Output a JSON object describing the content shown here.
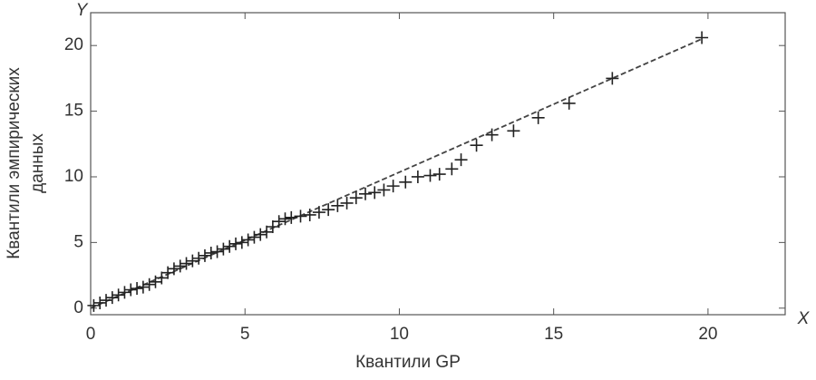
{
  "chart_data": {
    "type": "scatter",
    "x_label": "Квантили GP",
    "y_label": [
      "Квантили эмпирических",
      "данных"
    ],
    "x_axis_letter": "X",
    "y_axis_letter": "Y",
    "color": "#222222",
    "x": [
      0.1,
      0.3,
      0.5,
      0.7,
      0.9,
      1.1,
      1.3,
      1.5,
      1.7,
      1.9,
      2.1,
      2.3,
      2.5,
      2.7,
      2.9,
      3.1,
      3.3,
      3.5,
      3.7,
      3.9,
      4.1,
      4.3,
      4.5,
      4.7,
      4.9,
      5.1,
      5.3,
      5.5,
      5.7,
      5.9,
      6.1,
      6.3,
      6.5,
      6.8,
      7.1,
      7.4,
      7.7,
      8.0,
      8.3,
      8.6,
      8.9,
      9.2,
      9.5,
      9.8,
      10.2,
      10.6,
      11.0,
      11.3,
      11.7,
      12.0,
      12.5,
      13.0,
      13.7,
      14.5,
      15.5,
      16.9,
      19.8
    ],
    "values": [
      0.2,
      0.4,
      0.6,
      0.8,
      1.0,
      1.2,
      1.4,
      1.5,
      1.6,
      1.8,
      2.0,
      2.3,
      2.7,
      3.0,
      3.2,
      3.4,
      3.6,
      3.8,
      4.0,
      4.2,
      4.3,
      4.5,
      4.7,
      4.9,
      5.0,
      5.2,
      5.4,
      5.6,
      5.8,
      6.2,
      6.6,
      6.8,
      6.9,
      7.0,
      7.1,
      7.3,
      7.5,
      7.8,
      8.0,
      8.4,
      8.7,
      8.8,
      9.0,
      9.3,
      9.6,
      10.0,
      10.1,
      10.2,
      10.6,
      11.3,
      12.4,
      13.2,
      13.5,
      14.5,
      15.6,
      17.5,
      20.6
    ],
    "reference_line": {
      "x": [
        0,
        19.8
      ],
      "y": [
        0,
        20.5
      ]
    },
    "xlim": [
      0,
      22.5
    ],
    "ylim": [
      -0.5,
      22.5
    ],
    "xticks": [
      0,
      5,
      10,
      15,
      20
    ],
    "yticks": [
      0,
      5,
      10,
      15,
      20
    ],
    "grid": false
  }
}
